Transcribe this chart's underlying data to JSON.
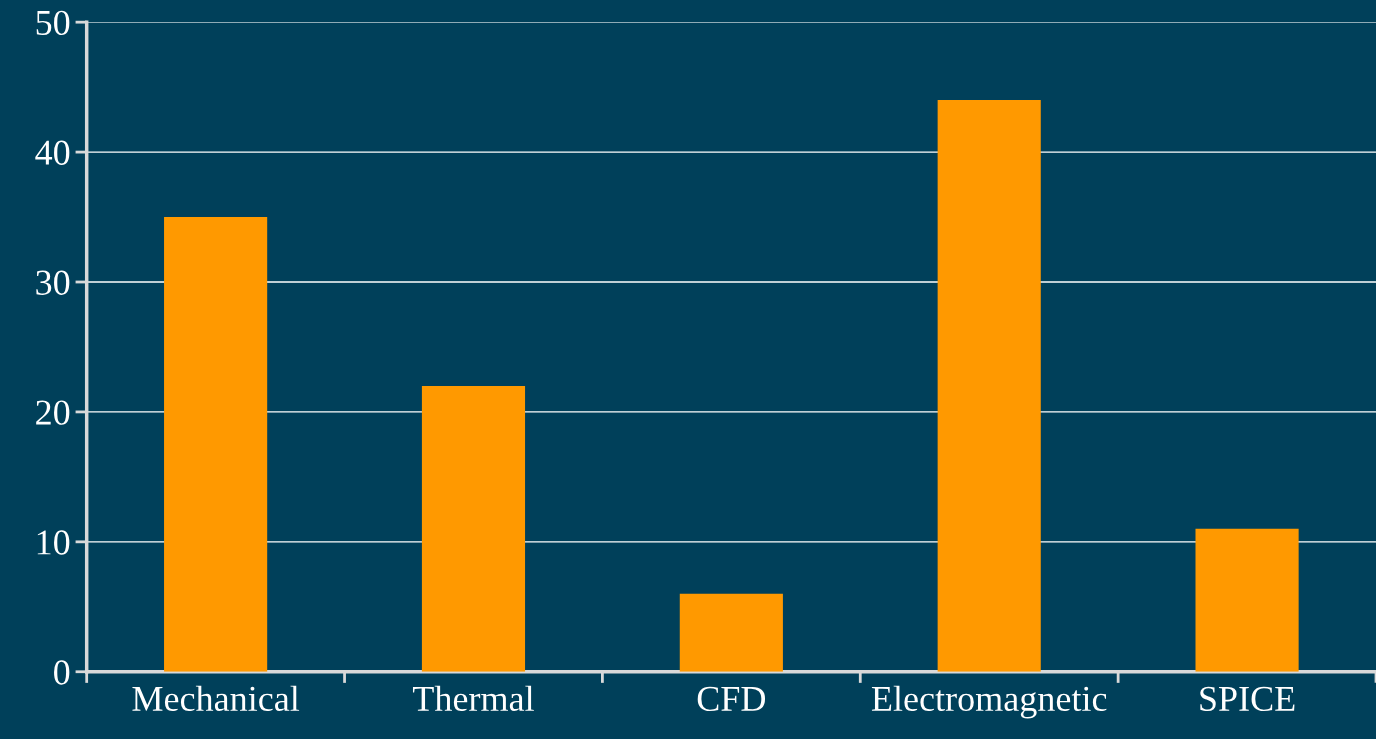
{
  "chart_data": {
    "type": "bar",
    "categories": [
      "Mechanical",
      "Thermal",
      "CFD",
      "Electromagnetic",
      "SPICE"
    ],
    "values": [
      35,
      22,
      6,
      44,
      11
    ],
    "color": "#ff9900",
    "ylim": [
      0,
      50
    ],
    "yticks": [
      0,
      10,
      20,
      30,
      40,
      50
    ],
    "grid": "y",
    "legend": false
  }
}
